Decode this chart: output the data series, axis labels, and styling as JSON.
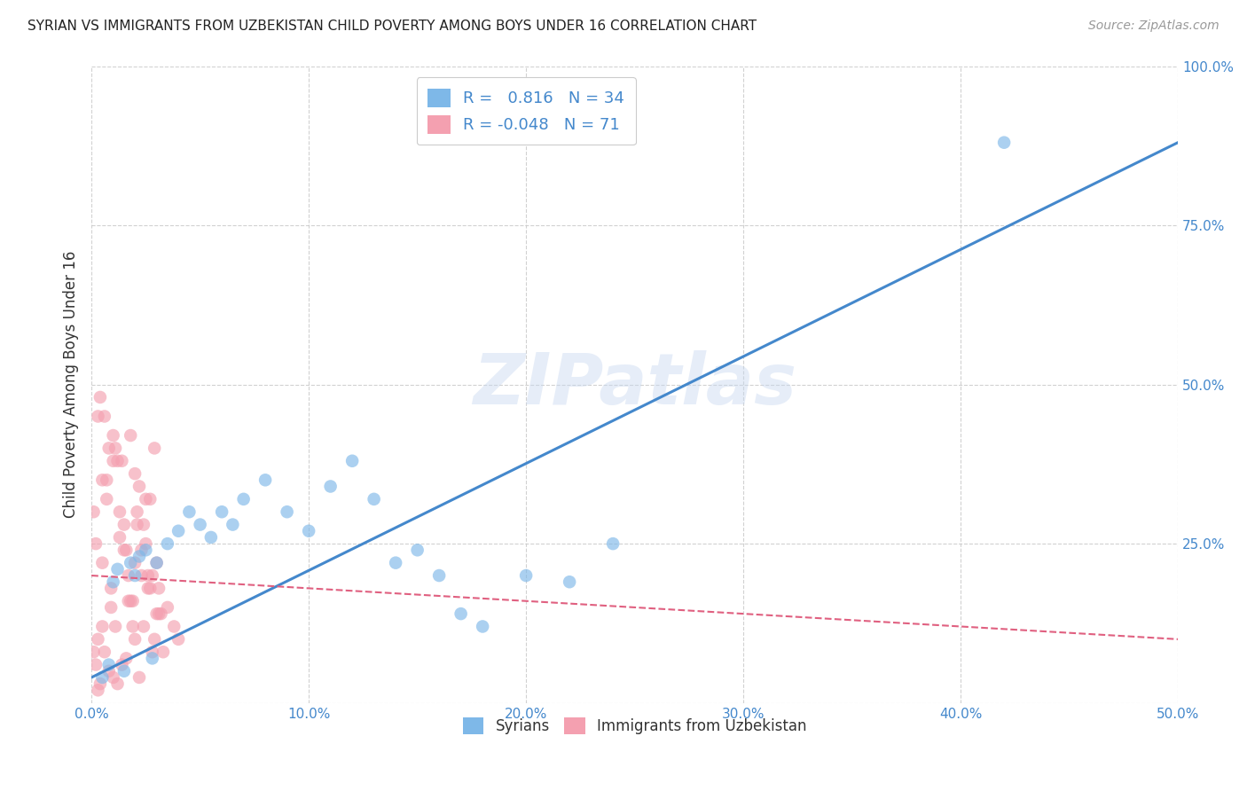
{
  "title": "SYRIAN VS IMMIGRANTS FROM UZBEKISTAN CHILD POVERTY AMONG BOYS UNDER 16 CORRELATION CHART",
  "source": "Source: ZipAtlas.com",
  "ylabel": "Child Poverty Among Boys Under 16",
  "xlabel_syrians": "Syrians",
  "xlabel_uzbek": "Immigrants from Uzbekistan",
  "xlim": [
    0.0,
    0.5
  ],
  "ylim": [
    0.0,
    1.0
  ],
  "x_ticks": [
    0.0,
    0.1,
    0.2,
    0.3,
    0.4,
    0.5
  ],
  "y_ticks": [
    0.0,
    0.25,
    0.5,
    0.75,
    1.0
  ],
  "x_tick_labels": [
    "0.0%",
    "10.0%",
    "20.0%",
    "30.0%",
    "40.0%",
    "50.0%"
  ],
  "y_tick_labels": [
    "",
    "25.0%",
    "50.0%",
    "75.0%",
    "100.0%"
  ],
  "R_syrian": 0.816,
  "N_syrian": 34,
  "R_uzbek": -0.048,
  "N_uzbek": 71,
  "color_syrian": "#7eb8e8",
  "color_uzbek": "#f4a0b0",
  "line_color_syrian": "#4488cc",
  "line_color_uzbek": "#e06080",
  "watermark": "ZIPatlas",
  "background_color": "#ffffff",
  "syrian_scatter_x": [
    0.005,
    0.008,
    0.01,
    0.012,
    0.015,
    0.018,
    0.02,
    0.022,
    0.025,
    0.028,
    0.03,
    0.035,
    0.04,
    0.045,
    0.05,
    0.055,
    0.06,
    0.065,
    0.07,
    0.08,
    0.09,
    0.1,
    0.11,
    0.12,
    0.13,
    0.14,
    0.15,
    0.16,
    0.17,
    0.18,
    0.2,
    0.22,
    0.24,
    0.42
  ],
  "syrian_scatter_y": [
    0.04,
    0.06,
    0.19,
    0.21,
    0.05,
    0.22,
    0.2,
    0.23,
    0.24,
    0.07,
    0.22,
    0.25,
    0.27,
    0.3,
    0.28,
    0.26,
    0.3,
    0.28,
    0.32,
    0.35,
    0.3,
    0.27,
    0.34,
    0.38,
    0.32,
    0.22,
    0.24,
    0.2,
    0.14,
    0.12,
    0.2,
    0.19,
    0.25,
    0.88
  ],
  "uzbek_scatter_x": [
    0.001,
    0.002,
    0.003,
    0.004,
    0.005,
    0.005,
    0.006,
    0.007,
    0.008,
    0.009,
    0.01,
    0.01,
    0.011,
    0.012,
    0.013,
    0.014,
    0.015,
    0.016,
    0.017,
    0.018,
    0.019,
    0.02,
    0.02,
    0.021,
    0.022,
    0.023,
    0.024,
    0.025,
    0.026,
    0.027,
    0.028,
    0.029,
    0.03,
    0.031,
    0.032,
    0.003,
    0.004,
    0.006,
    0.008,
    0.01,
    0.012,
    0.014,
    0.016,
    0.018,
    0.02,
    0.022,
    0.024,
    0.026,
    0.028,
    0.03,
    0.001,
    0.002,
    0.003,
    0.005,
    0.007,
    0.009,
    0.011,
    0.013,
    0.015,
    0.017,
    0.019,
    0.021,
    0.023,
    0.025,
    0.027,
    0.029,
    0.031,
    0.033,
    0.035,
    0.038,
    0.04
  ],
  "uzbek_scatter_y": [
    0.08,
    0.06,
    0.1,
    0.48,
    0.35,
    0.12,
    0.45,
    0.32,
    0.4,
    0.15,
    0.38,
    0.42,
    0.12,
    0.38,
    0.26,
    0.38,
    0.28,
    0.24,
    0.2,
    0.42,
    0.16,
    0.22,
    0.36,
    0.3,
    0.34,
    0.24,
    0.28,
    0.25,
    0.18,
    0.32,
    0.2,
    0.4,
    0.22,
    0.18,
    0.14,
    0.02,
    0.03,
    0.08,
    0.05,
    0.04,
    0.03,
    0.06,
    0.07,
    0.16,
    0.1,
    0.04,
    0.12,
    0.2,
    0.08,
    0.14,
    0.3,
    0.25,
    0.45,
    0.22,
    0.35,
    0.18,
    0.4,
    0.3,
    0.24,
    0.16,
    0.12,
    0.28,
    0.2,
    0.32,
    0.18,
    0.1,
    0.14,
    0.08,
    0.15,
    0.12,
    0.1
  ],
  "syrian_line_x": [
    0.0,
    0.5
  ],
  "syrian_line_y": [
    0.04,
    0.88
  ],
  "uzbek_line_x": [
    0.0,
    0.5
  ],
  "uzbek_line_y": [
    0.2,
    0.1
  ]
}
